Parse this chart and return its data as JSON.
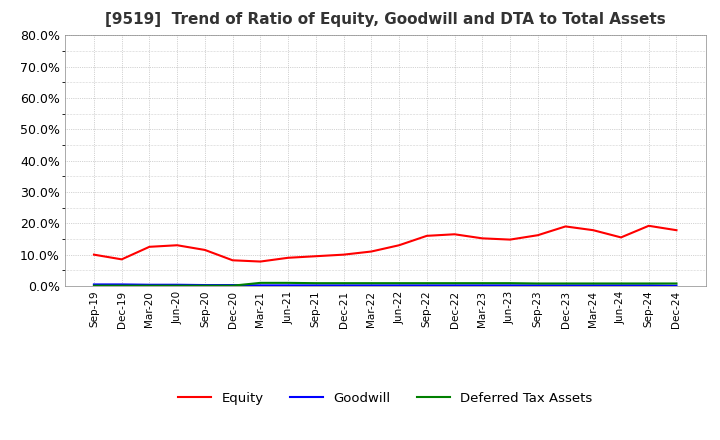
{
  "title": "[9519]  Trend of Ratio of Equity, Goodwill and DTA to Total Assets",
  "title_fontsize": 11,
  "ylim": [
    0.0,
    0.8
  ],
  "yticks": [
    0.0,
    0.1,
    0.2,
    0.3,
    0.4,
    0.5,
    0.6,
    0.7,
    0.8
  ],
  "ytick_labels": [
    "0.0%",
    "10.0%",
    "20.0%",
    "30.0%",
    "40.0%",
    "50.0%",
    "60.0%",
    "70.0%",
    "80.0%"
  ],
  "x_labels": [
    "Sep-19",
    "Dec-19",
    "Mar-20",
    "Jun-20",
    "Sep-20",
    "Dec-20",
    "Mar-21",
    "Jun-21",
    "Sep-21",
    "Dec-21",
    "Mar-22",
    "Jun-22",
    "Sep-22",
    "Dec-22",
    "Mar-23",
    "Jun-23",
    "Sep-23",
    "Dec-23",
    "Mar-24",
    "Jun-24",
    "Sep-24",
    "Dec-24"
  ],
  "equity": [
    0.1,
    0.085,
    0.125,
    0.13,
    0.115,
    0.082,
    0.078,
    0.09,
    0.095,
    0.1,
    0.11,
    0.13,
    0.16,
    0.165,
    0.152,
    0.148,
    0.162,
    0.19,
    0.178,
    0.155,
    0.192,
    0.178
  ],
  "goodwill": [
    0.005,
    0.005,
    0.004,
    0.004,
    0.003,
    0.003,
    0.002,
    0.002,
    0.002,
    0.002,
    0.002,
    0.002,
    0.002,
    0.002,
    0.002,
    0.002,
    0.002,
    0.002,
    0.002,
    0.002,
    0.002,
    0.001
  ],
  "dta": [
    0.001,
    0.001,
    0.001,
    0.001,
    0.001,
    0.001,
    0.01,
    0.01,
    0.009,
    0.009,
    0.009,
    0.009,
    0.009,
    0.009,
    0.009,
    0.009,
    0.008,
    0.008,
    0.008,
    0.008,
    0.008,
    0.008
  ],
  "equity_color": "#FF0000",
  "goodwill_color": "#0000FF",
  "dta_color": "#008000",
  "bg_color": "#FFFFFF",
  "plot_bg_color": "#FFFFFF",
  "grid_color": "#AAAAAA",
  "legend_labels": [
    "Equity",
    "Goodwill",
    "Deferred Tax Assets"
  ]
}
